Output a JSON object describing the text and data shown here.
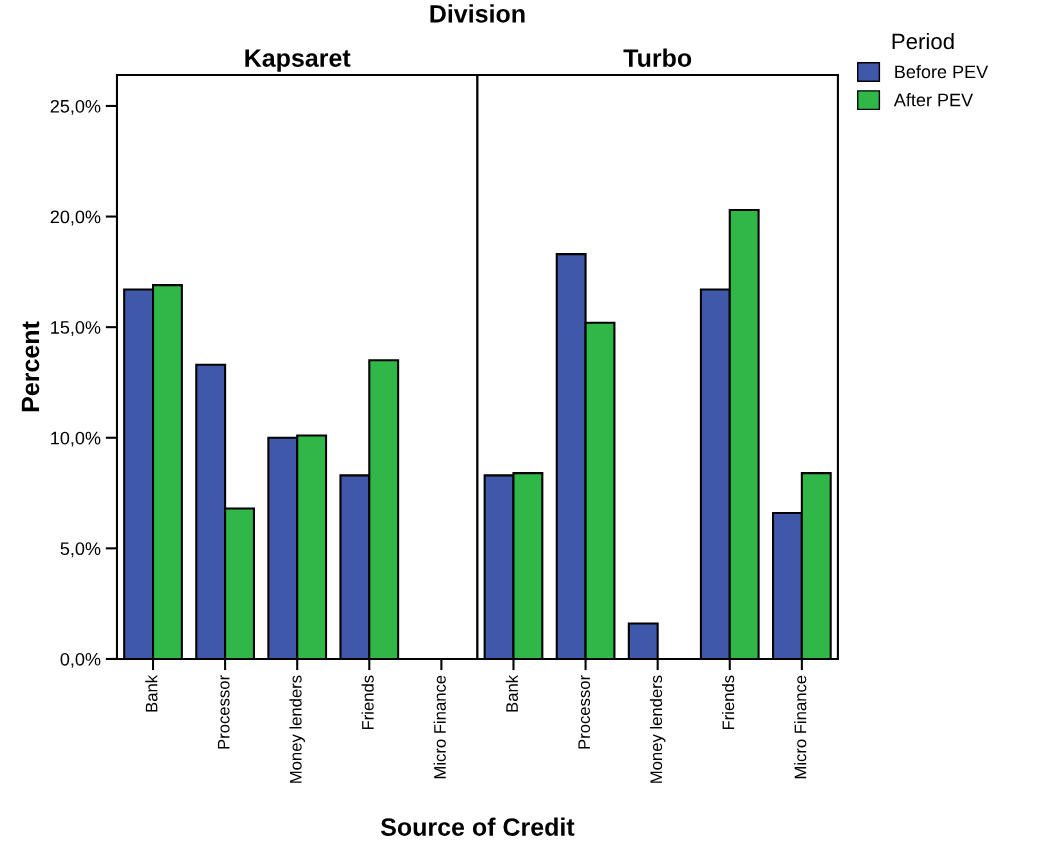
{
  "chart_data": [
    {
      "type": "bar",
      "title": "Kapsaret",
      "annotations": [
        "Division"
      ],
      "xlabel": "Source of Credit",
      "ylabel": "Percent",
      "categories": [
        "Bank",
        "Processor",
        "Money lenders",
        "Friends",
        "Micro Finance"
      ],
      "series": [
        {
          "name": "Before PEV",
          "color": "#3f58a9",
          "values": [
            16.7,
            13.3,
            10.0,
            8.3,
            null
          ]
        },
        {
          "name": "After PEV",
          "color": "#2fb747",
          "values": [
            16.9,
            6.8,
            10.1,
            13.5,
            null
          ]
        }
      ],
      "ylim": [
        0,
        26.4
      ],
      "yticks": [
        {
          "value": 0,
          "label": "0,0%"
        },
        {
          "value": 5,
          "label": "5,0%"
        },
        {
          "value": 10,
          "label": "10,0%"
        },
        {
          "value": 15,
          "label": "15,0%"
        },
        {
          "value": 20,
          "label": "20,0%"
        },
        {
          "value": 25,
          "label": "25,0%"
        }
      ],
      "grid": false,
      "legend": "right",
      "legend_title": "Period"
    },
    {
      "type": "bar",
      "title": "Turbo",
      "categories": [
        "Bank",
        "Processor",
        "Money lenders",
        "Friends",
        "Micro Finance"
      ],
      "series": [
        {
          "color": "#3f58a9",
          "values": [
            8.3,
            18.3,
            1.6,
            16.7,
            6.6
          ]
        },
        {
          "color": "#2fb747",
          "values": [
            8.4,
            15.2,
            null,
            20.3,
            8.4
          ]
        }
      ],
      "ylim": [
        0,
        26.4
      ],
      "tick_labels": "x",
      "grid": false
    }
  ]
}
